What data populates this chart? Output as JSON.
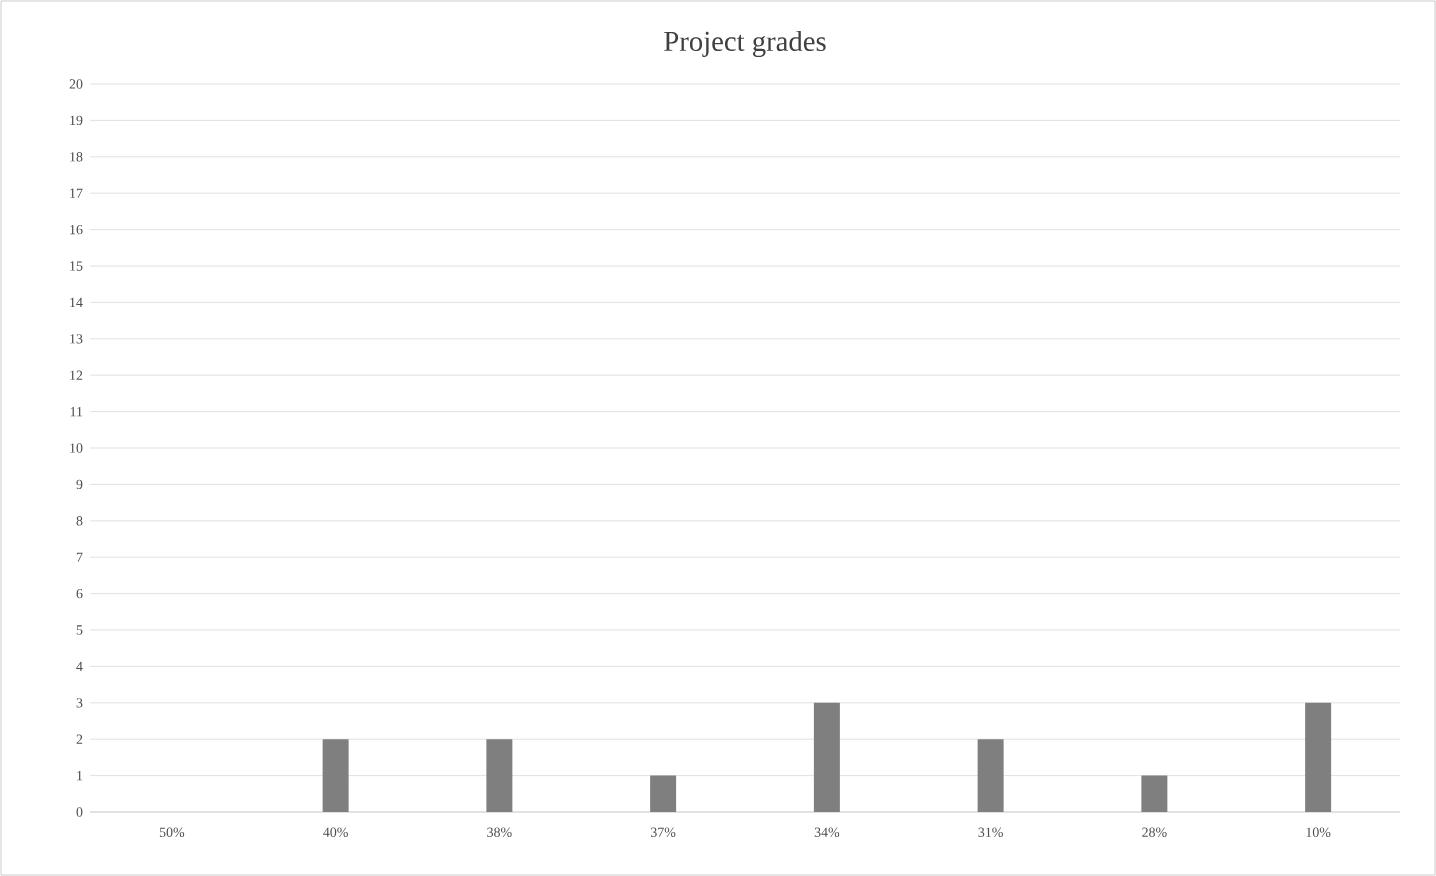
{
  "chart_data": {
    "type": "bar",
    "title": "Project grades",
    "categories": [
      "50%",
      "40%",
      "38%",
      "37%",
      "34%",
      "31%",
      "28%",
      "10%"
    ],
    "values": [
      0,
      2,
      2,
      1,
      3,
      2,
      1,
      3
    ],
    "color": "#7f7f7f",
    "ylim": [
      0,
      20
    ],
    "yticks": [
      0,
      1,
      2,
      3,
      4,
      5,
      6,
      7,
      8,
      9,
      10,
      11,
      12,
      13,
      14,
      15,
      16,
      17,
      18,
      19,
      20
    ],
    "grid": "y"
  }
}
